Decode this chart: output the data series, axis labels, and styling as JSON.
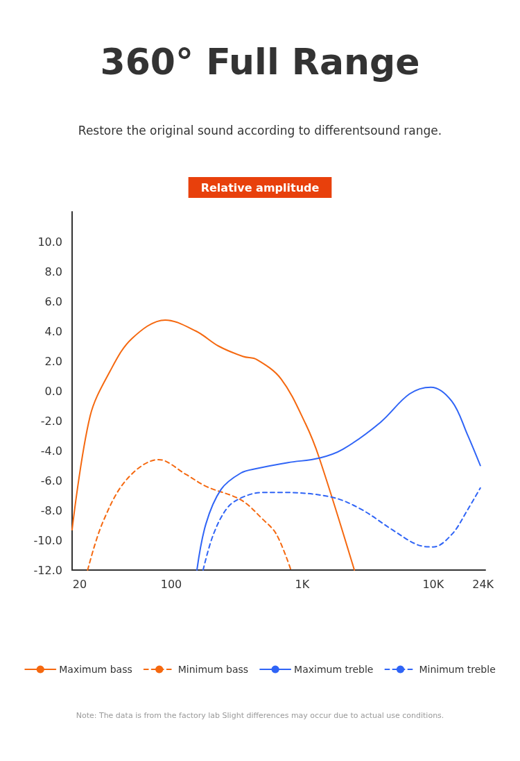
{
  "chart_data": {
    "type": "line",
    "title": "360° Full Range",
    "subtitle": "Restore the original sound according to differentsound range.",
    "ylabel": "Relative amplitude",
    "annotations": [
      "Note: The data is from the factory lab Slight differences may occur due to actual use conditions."
    ],
    "log": "x",
    "xlim": [
      17.5,
      25000
    ],
    "xticks": [
      20,
      100,
      {
        "value": 1000,
        "label": "1K"
      },
      {
        "value": 10000,
        "label": "10K"
      },
      {
        "value": 24000,
        "label": "24K"
      }
    ],
    "ylim": [
      -12,
      12
    ],
    "yticks": [
      {
        "value": -12,
        "label": "-12.0"
      },
      {
        "value": -10,
        "label": "-10.0"
      },
      {
        "value": -8,
        "label": "-8.0"
      },
      {
        "value": -6,
        "label": "-6.0"
      },
      {
        "value": -4,
        "label": "-4.0"
      },
      {
        "value": -2,
        "label": "-2.0"
      },
      {
        "value": 0,
        "label": "0.0"
      },
      {
        "value": 2,
        "label": "2.0"
      },
      {
        "value": 4,
        "label": "4.0"
      },
      {
        "value": 6,
        "label": "6.0"
      },
      {
        "value": 8,
        "label": "8.0"
      },
      {
        "value": 10,
        "label": "10.0"
      }
    ],
    "grid": false,
    "legend": "bottom",
    "marker": "none",
    "series": [
      {
        "name": "Maximum bass",
        "color": "#f5680f",
        "line_style": "solid",
        "x": [
          17.5,
          24,
          34,
          50,
          90,
          155,
          230,
          355,
          450,
          690,
          1060,
          1350,
          2500
        ],
        "values": [
          -9.3,
          -1.7,
          1.3,
          3.5,
          4.75,
          4.0,
          3.0,
          2.3,
          2.1,
          0.8,
          -2.2,
          -4.5,
          -12
        ]
      },
      {
        "name": "Minimum bass",
        "color": "#f5680f",
        "line_style": "dashed",
        "x": [
          23,
          30,
          46,
          80,
          130,
          185,
          340,
          500,
          635,
          820
        ],
        "values": [
          -12,
          -8.8,
          -5.9,
          -4.6,
          -5.6,
          -6.4,
          -7.3,
          -8.6,
          -9.6,
          -12
        ]
      },
      {
        "name": "Maximum treble",
        "color": "#2f64f6",
        "line_style": "solid",
        "x": [
          157,
          184,
          240,
          340,
          450,
          780,
          1350,
          2050,
          3960,
          6600,
          9600,
          13900,
          18200,
          22900
        ],
        "values": [
          -12,
          -8.9,
          -6.6,
          -5.5,
          -5.2,
          -4.8,
          -4.5,
          -3.9,
          -2.1,
          -0.2,
          0.25,
          -0.7,
          -2.9,
          -5.0
        ]
      },
      {
        "name": "Minimum treble",
        "color": "#2f64f6",
        "line_style": "dashed",
        "x": [
          175,
          210,
          270,
          355,
          500,
          690,
          1650,
          2780,
          4870,
          7550,
          10000,
          13900,
          18200,
          22900
        ],
        "values": [
          -12,
          -9.6,
          -7.8,
          -7.1,
          -6.8,
          -6.8,
          -7.1,
          -7.9,
          -9.3,
          -10.3,
          -10.45,
          -9.6,
          -8.0,
          -6.5
        ]
      }
    ]
  }
}
